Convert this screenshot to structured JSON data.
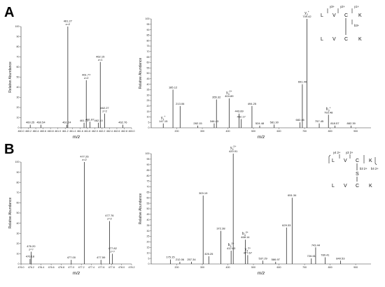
{
  "figure": {
    "panels": [
      {
        "letter": "A"
      },
      {
        "letter": "B"
      }
    ]
  },
  "structure_A": {
    "top_row": [
      "L",
      "V",
      "C",
      "K"
    ],
    "bottom_row": [
      "L",
      "V",
      "C",
      "K"
    ],
    "ions": [
      "y3+",
      "y2+",
      "y1+",
      "b3+"
    ]
  },
  "structure_B": {
    "top_row": [
      "L",
      "V",
      "C",
      "K"
    ],
    "bottom_row": [
      "L",
      "V",
      "C",
      "K"
    ],
    "link": "S",
    "ions": [
      "y4 2+",
      "y3 2+",
      "b3 2+",
      "b4 2+"
    ]
  },
  "chart_data": [
    {
      "id": "A-left",
      "type": "bar",
      "ylabel": "Relative Abundance",
      "xlabel": "m/z",
      "xlim": [
        460.0,
        463.0
      ],
      "ylim": [
        0,
        100
      ],
      "xticks": [
        "460.0",
        "460.2",
        "460.4",
        "460.6",
        "460.8",
        "461.0",
        "461.2",
        "461.4",
        "461.6",
        "461.8",
        "462.0",
        "462.2",
        "462.4",
        "462.6",
        "462.8",
        "463.0"
      ],
      "yticks": [
        "0",
        "10",
        "20",
        "30",
        "40",
        "50",
        "60",
        "70",
        "80",
        "90",
        "100"
      ],
      "peaks": [
        {
          "mz": 460.25,
          "y": 3,
          "label": "460.25"
        },
        {
          "mz": 460.54,
          "y": 3,
          "label": "460.54"
        },
        {
          "mz": 461.24,
          "y": 3,
          "label": "461.24"
        },
        {
          "mz": 461.27,
          "y": 100,
          "label": "461.27",
          "sub": "z=2"
        },
        {
          "mz": 461.71,
          "y": 5,
          "label": "461.71"
        },
        {
          "mz": 461.77,
          "y": 47,
          "label": "461.77",
          "sub": "z=2"
        },
        {
          "mz": 461.87,
          "y": 6,
          "label": "461.87"
        },
        {
          "mz": 462.1,
          "y": 5,
          "label": "462.10"
        },
        {
          "mz": 462.15,
          "y": 65,
          "label": "462.15",
          "sub": "z=1"
        },
        {
          "mz": 462.27,
          "y": 14,
          "label": "462.27",
          "sub": "z=2"
        },
        {
          "mz": 462.76,
          "y": 3,
          "label": "462.76"
        }
      ]
    },
    {
      "id": "A-right",
      "type": "bar",
      "ylabel": "Relative Abundance",
      "xlabel": "m/z",
      "xlim": [
        100,
        960
      ],
      "ylim": [
        0,
        100
      ],
      "xticks": [
        "200",
        "300",
        "400",
        "500",
        "600",
        "700",
        "800",
        "900"
      ],
      "yticks": [
        "0",
        "5",
        "10",
        "15",
        "20",
        "25",
        "30",
        "35",
        "40",
        "45",
        "50",
        "55",
        "60",
        "65",
        "70",
        "75",
        "80",
        "85",
        "90",
        "95",
        "100"
      ],
      "peaks": [
        {
          "mz": 147.15,
          "y": 4,
          "label": "147.15",
          "ion": "y1+"
        },
        {
          "mz": 185.12,
          "y": 35,
          "label": "185.12"
        },
        {
          "mz": 213.06,
          "y": 20,
          "label": "213.06"
        },
        {
          "mz": 282.15,
          "y": 2,
          "label": "282.15"
        },
        {
          "mz": 346.43,
          "y": 4,
          "label": "346.43"
        },
        {
          "mz": 355.32,
          "y": 26,
          "label": "355.32"
        },
        {
          "mz": 404.89,
          "y": 27,
          "label": "404.89",
          "ion": "y3 2+"
        },
        {
          "mz": 443.89,
          "y": 13,
          "label": "443.89"
        },
        {
          "mz": 452.17,
          "y": 8,
          "label": "452.17"
        },
        {
          "mz": 494.25,
          "y": 20,
          "label": "494.25"
        },
        {
          "mz": 524.48,
          "y": 2,
          "label": "524.48"
        },
        {
          "mz": 581.3,
          "y": 3,
          "label": "581.30"
        },
        {
          "mz": 682.46,
          "y": 5,
          "label": "682.46"
        },
        {
          "mz": 691.4,
          "y": 40,
          "label": "691.40"
        },
        {
          "mz": 709.42,
          "y": 100,
          "label": "709.42",
          "ion": "y2+"
        },
        {
          "mz": 757.45,
          "y": 4,
          "label": "757.45"
        },
        {
          "mz": 793.48,
          "y": 12,
          "label": "793.48",
          "ion": "b3+"
        },
        {
          "mz": 818.57,
          "y": 2,
          "label": "818.57"
        },
        {
          "mz": 882.39,
          "y": 2,
          "label": "882.39"
        }
      ]
    },
    {
      "id": "B-left",
      "type": "bar",
      "ylabel": "Relative Abundance",
      "xlabel": "m/z",
      "xlim": [
        476.0,
        478.2
      ],
      "ylim": [
        0,
        100
      ],
      "xticks": [
        "476.0",
        "476.2",
        "476.4",
        "476.6",
        "476.8",
        "477.0",
        "477.2",
        "477.4",
        "477.6",
        "477.8",
        "478.0",
        "478.2"
      ],
      "yticks": [
        "0",
        "10",
        "20",
        "30",
        "40",
        "50",
        "60",
        "70",
        "80",
        "90",
        "100"
      ],
      "peaks": [
        {
          "mz": 476.18,
          "y": 5,
          "label": "476.18"
        },
        {
          "mz": 476.2,
          "y": 12,
          "label": "476.20",
          "sub": "z=?"
        },
        {
          "mz": 477.0,
          "y": 4,
          "label": "477.00"
        },
        {
          "mz": 477.26,
          "y": 100,
          "label": "477.26",
          "sub": "z=2"
        },
        {
          "mz": 477.59,
          "y": 4,
          "label": "477.59"
        },
        {
          "mz": 477.76,
          "y": 42,
          "label": "477.76",
          "sub": "z=2"
        },
        {
          "mz": 477.82,
          "y": 10,
          "label": "477.82",
          "sub": "z=?"
        }
      ]
    },
    {
      "id": "B-right",
      "type": "bar",
      "ylabel": "Relative Abundance",
      "xlabel": "m/z",
      "xlim": [
        100,
        960
      ],
      "ylim": [
        0,
        100
      ],
      "xticks": [
        "200",
        "300",
        "400",
        "500",
        "600",
        "700",
        "800",
        "900"
      ],
      "yticks": [
        "0",
        "5",
        "10",
        "15",
        "20",
        "25",
        "30",
        "35",
        "40",
        "45",
        "50",
        "55",
        "60",
        "65",
        "70",
        "75",
        "80",
        "85",
        "90",
        "95",
        "100"
      ],
      "peaks": [
        {
          "mz": 175.15,
          "y": 4,
          "label": "175.15"
        },
        {
          "mz": 212.06,
          "y": 2,
          "label": "212.06"
        },
        {
          "mz": 257.34,
          "y": 2,
          "label": "257.34"
        },
        {
          "mz": 303.19,
          "y": 62,
          "label": "303.19"
        },
        {
          "mz": 325.25,
          "y": 7,
          "label": "325.25"
        },
        {
          "mz": 372.38,
          "y": 30,
          "label": "372.38"
        },
        {
          "mz": 412.63,
          "y": 12,
          "label": "412.63",
          "ion": "b3 2+"
        },
        {
          "mz": 420.91,
          "y": 100,
          "label": "420.91",
          "ion": "y3 2+"
        },
        {
          "mz": 468.14,
          "y": 22,
          "label": "468.14",
          "ion": "b4 2+"
        },
        {
          "mz": 477.67,
          "y": 8,
          "label": "477.67",
          "ion": "y4 2+"
        },
        {
          "mz": 537.29,
          "y": 3,
          "label": "537.29"
        },
        {
          "mz": 586.97,
          "y": 2,
          "label": "586.97"
        },
        {
          "mz": 629.33,
          "y": 33,
          "label": "629.33"
        },
        {
          "mz": 651.34,
          "y": 60,
          "label": "651.34"
        },
        {
          "mz": 726.61,
          "y": 5,
          "label": "726.61"
        },
        {
          "mz": 743.44,
          "y": 15,
          "label": "743.44"
        },
        {
          "mz": 780.41,
          "y": 6,
          "label": "780.41"
        },
        {
          "mz": 840.53,
          "y": 3,
          "label": "840.53"
        }
      ]
    }
  ]
}
